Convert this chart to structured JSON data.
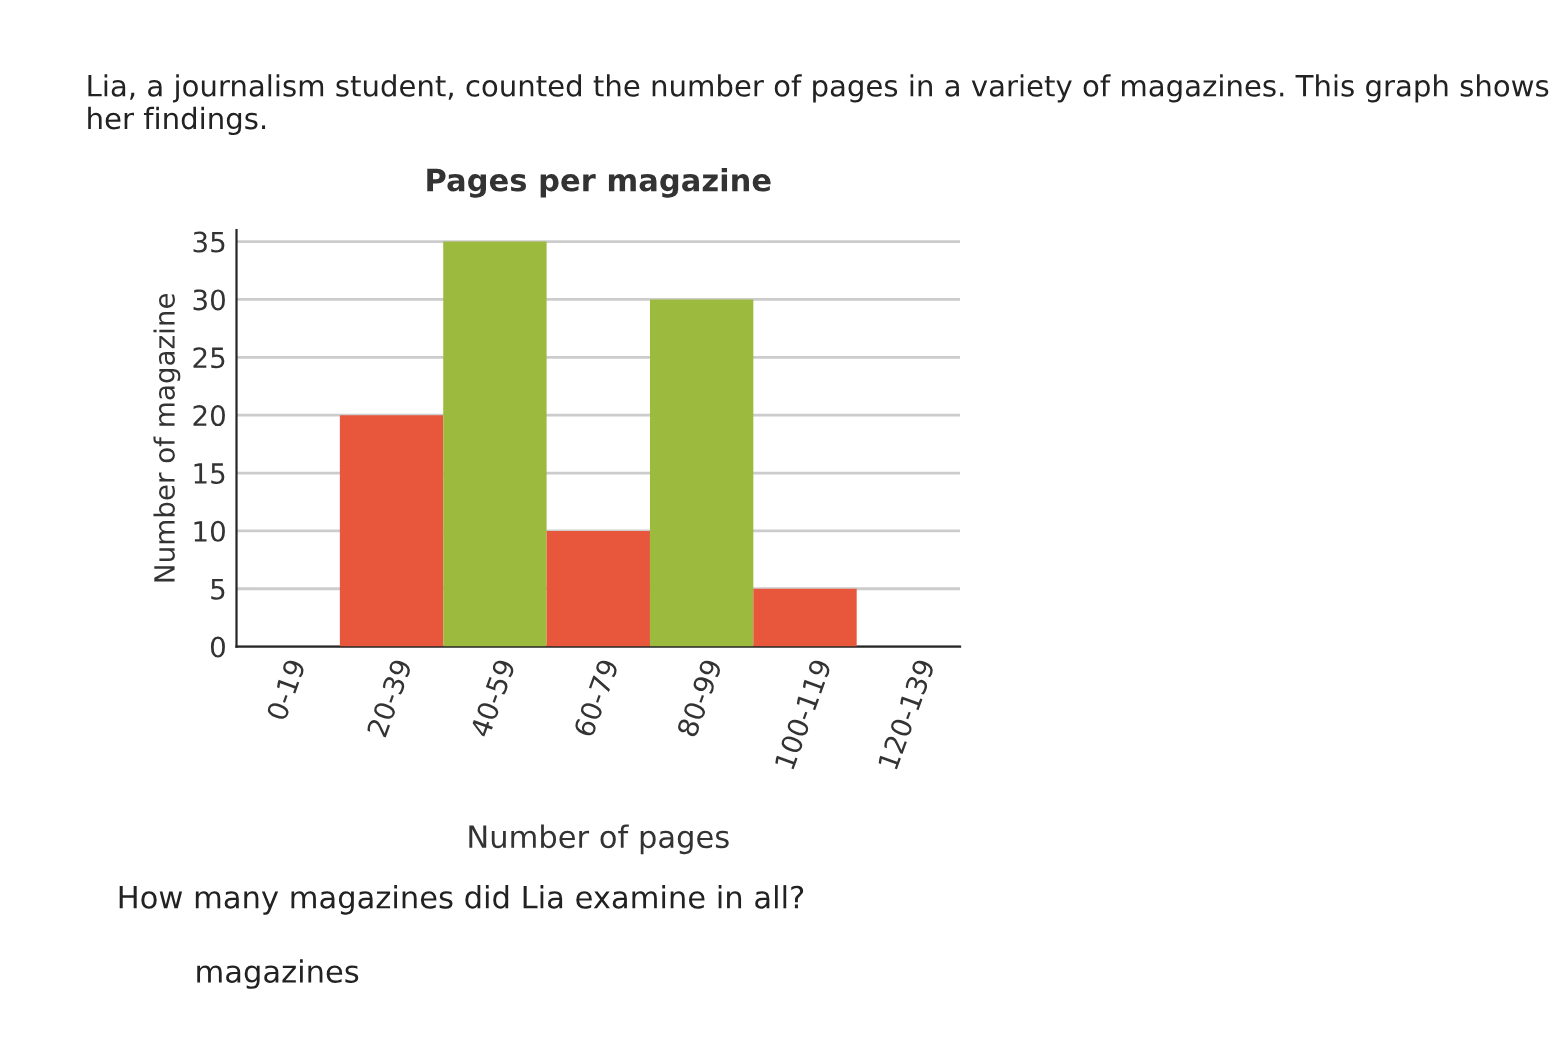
{
  "chart_data": {
    "type": "bar",
    "title": "Pages per magazine",
    "xlabel": "Number of pages",
    "ylabel": "Number of magazine",
    "categories": [
      "0-19",
      "20-39",
      "40-59",
      "60-79",
      "80-99",
      "100-119",
      "120-139"
    ],
    "values": [
      0,
      20,
      35,
      10,
      30,
      5,
      0
    ],
    "colors": [
      "#e8573c",
      "#e8573c",
      "#9cba3e",
      "#e8573c",
      "#9cba3e",
      "#e8573c",
      "#9cba3e"
    ],
    "ylim": [
      0,
      36
    ],
    "yticks": [
      0,
      5,
      10,
      15,
      20,
      25,
      30,
      35
    ],
    "grid": "y",
    "annotations": [
      "Lia, a journalism student, counted the number of pages in a variety of magazines. This graph shows her findings.",
      "How many magazines did Lia examine in all?",
      "magazines"
    ]
  }
}
